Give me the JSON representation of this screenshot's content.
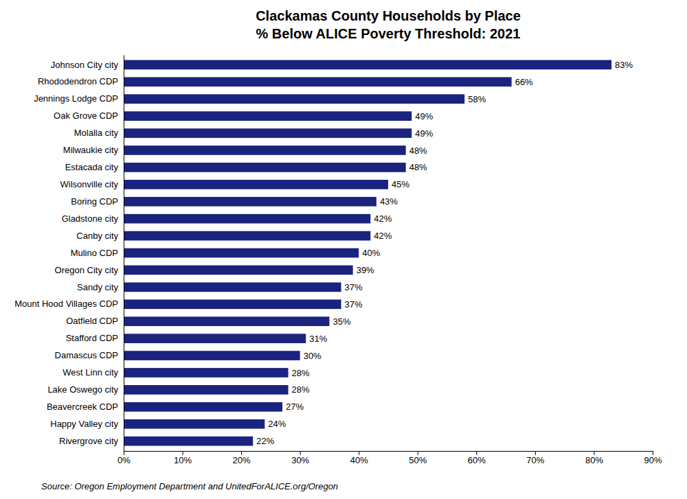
{
  "chart_data": {
    "type": "bar",
    "orientation": "horizontal",
    "title": "Clackamas County Households by Place\n% Below ALICE Poverty Threshold: 2021",
    "categories": [
      "Rivergrove city",
      "Happy Valley city",
      "Beavercreek CDP",
      "Lake Oswego city",
      "West Linn city",
      "Damascus CDP",
      "Stafford CDP",
      "Oatfield CDP",
      "Mount Hood Villages CDP",
      "Sandy city",
      "Oregon City city",
      "Mulino CDP",
      "Canby city",
      "Gladstone city",
      "Boring CDP",
      "Wilsonville city",
      "Estacada city",
      "Milwaukie city",
      "Molalla city",
      "Oak Grove CDP",
      "Jennings Lodge CDP",
      "Rhododendron CDP",
      "Johnson City city"
    ],
    "values": [
      22,
      24,
      27,
      28,
      28,
      30,
      31,
      35,
      37,
      37,
      39,
      40,
      42,
      42,
      43,
      45,
      48,
      48,
      49,
      49,
      58,
      66,
      83
    ],
    "value_labels": [
      "22%",
      "24%",
      "27%",
      "28%",
      "28%",
      "30%",
      "31%",
      "35%",
      "37%",
      "37%",
      "39%",
      "40%",
      "42%",
      "42%",
      "43%",
      "45%",
      "48%",
      "48%",
      "49%",
      "49%",
      "58%",
      "66%",
      "83%"
    ],
    "data_labels": true,
    "color": "#1a237e",
    "xlim": [
      0,
      90
    ],
    "xticks": [
      {
        "value": 0,
        "label": "0%"
      },
      {
        "value": 10,
        "label": "10%"
      },
      {
        "value": 20,
        "label": "20%"
      },
      {
        "value": 30,
        "label": "30%"
      },
      {
        "value": 40,
        "label": "40%"
      },
      {
        "value": 50,
        "label": "50%"
      },
      {
        "value": 60,
        "label": "60%"
      },
      {
        "value": 70,
        "label": "70%"
      },
      {
        "value": 80,
        "label": "80%"
      },
      {
        "value": 90,
        "label": "90%"
      }
    ],
    "grid": false,
    "annotations": [
      "Source: Oregon Employment Department and UnitedForALICE.org/Oregon"
    ]
  }
}
